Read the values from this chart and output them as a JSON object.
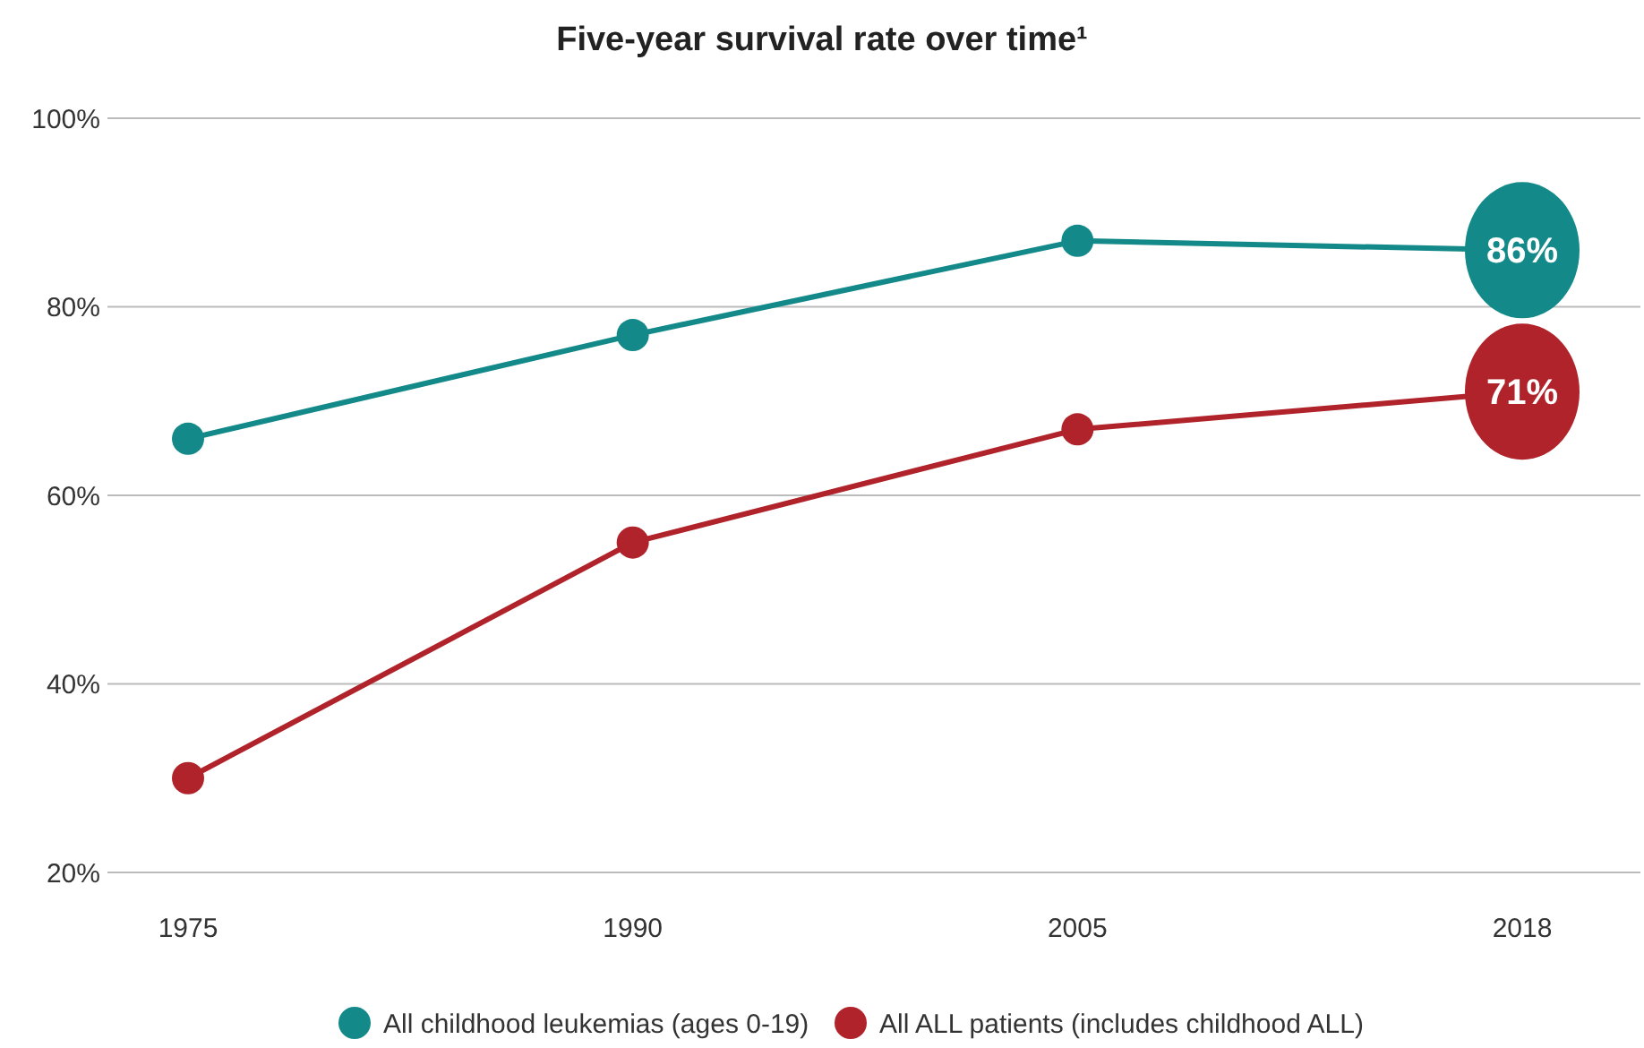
{
  "chart_data": {
    "type": "line",
    "title": "Five-year survival rate over time¹",
    "categories": [
      "1975",
      "1990",
      "2005",
      "2018"
    ],
    "series": [
      {
        "name": "All childhood leukemias (ages 0-19)",
        "color": "#138a89",
        "values": [
          66,
          77,
          87,
          86
        ],
        "value_labels": [
          null,
          null,
          null,
          "86%"
        ]
      },
      {
        "name": "All ALL patients (includes childhood ALL)",
        "color": "#b0232a",
        "values": [
          30,
          55,
          67,
          71
        ],
        "value_labels": [
          null,
          null,
          null,
          "71%"
        ]
      }
    ],
    "ylim": [
      20,
      100
    ],
    "yticks": [
      {
        "value": 20,
        "label": "20%"
      },
      {
        "value": 40,
        "label": "40%"
      },
      {
        "value": 60,
        "label": "60%"
      },
      {
        "value": 80,
        "label": "80%"
      },
      {
        "value": 100,
        "label": "100%"
      }
    ],
    "grid": "y",
    "legend": "bottom",
    "marker": "circle",
    "line_style": "solid"
  }
}
